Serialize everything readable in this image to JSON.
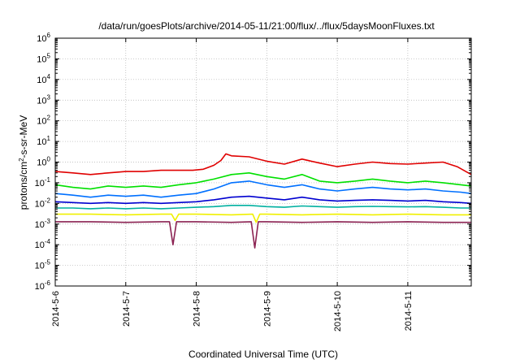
{
  "chart_data": {
    "type": "line",
    "title": "/data/run/goesPlots/archive/2014-05-11/21:00/flux/../flux/5daysMoonFluxes.txt",
    "xlabel": "Coordinated Universal Time (UTC)",
    "ylabel_parts": {
      "prefix": "protons/cm",
      "sup": "2",
      "suffix": "-s-sr-MeV"
    },
    "y_scale": "log",
    "ylim": [
      1e-06,
      1000000.0
    ],
    "x_unit": "days",
    "xlim": [
      0,
      5.9
    ],
    "x_ticks": [
      {
        "value": 0,
        "label": "2014-5-6"
      },
      {
        "value": 1,
        "label": "2014-5-7"
      },
      {
        "value": 2,
        "label": "2014-5-8"
      },
      {
        "value": 3,
        "label": "2014-5-9"
      },
      {
        "value": 4,
        "label": "2014-5-10"
      },
      {
        "value": 5,
        "label": "2014-5-11"
      }
    ],
    "y_ticks": [
      {
        "value": 1e-06,
        "base": "10",
        "exp": "-6"
      },
      {
        "value": 1e-05,
        "base": "10",
        "exp": "-5"
      },
      {
        "value": 0.0001,
        "base": "10",
        "exp": "-4"
      },
      {
        "value": 0.001,
        "base": "10",
        "exp": "-3"
      },
      {
        "value": 0.01,
        "base": "10",
        "exp": "-2"
      },
      {
        "value": 0.1,
        "base": "10",
        "exp": "-1"
      },
      {
        "value": 1.0,
        "base": "10",
        "exp": "0"
      },
      {
        "value": 10.0,
        "base": "10",
        "exp": "1"
      },
      {
        "value": 100.0,
        "base": "10",
        "exp": "2"
      },
      {
        "value": 1000.0,
        "base": "10",
        "exp": "3"
      },
      {
        "value": 10000.0,
        "base": "10",
        "exp": "4"
      },
      {
        "value": 100000.0,
        "base": "10",
        "exp": "5"
      },
      {
        "value": 1000000.0,
        "base": "10",
        "exp": "6"
      }
    ],
    "grid": true,
    "series": [
      {
        "color": "#e00000",
        "x": [
          0,
          0.25,
          0.5,
          0.75,
          1.0,
          1.25,
          1.5,
          1.75,
          1.95,
          2.1,
          2.25,
          2.35,
          2.42,
          2.5,
          2.75,
          3.0,
          3.25,
          3.5,
          3.75,
          4.0,
          4.25,
          4.5,
          4.75,
          5.0,
          5.25,
          5.5,
          5.7,
          5.9
        ],
        "y": [
          0.35,
          0.3,
          0.25,
          0.3,
          0.35,
          0.35,
          0.4,
          0.4,
          0.4,
          0.45,
          0.7,
          1.2,
          2.5,
          2.0,
          1.8,
          1.1,
          0.8,
          1.4,
          0.9,
          0.6,
          0.8,
          1.0,
          0.85,
          0.8,
          0.9,
          1.0,
          0.6,
          0.25
        ]
      },
      {
        "color": "#00e000",
        "x": [
          0,
          0.25,
          0.5,
          0.75,
          1.0,
          1.25,
          1.5,
          1.75,
          2.0,
          2.25,
          2.5,
          2.75,
          3.0,
          3.25,
          3.5,
          3.75,
          4.0,
          4.25,
          4.5,
          4.75,
          5.0,
          5.25,
          5.5,
          5.75,
          5.9
        ],
        "y": [
          0.08,
          0.06,
          0.05,
          0.07,
          0.06,
          0.07,
          0.06,
          0.08,
          0.1,
          0.15,
          0.25,
          0.3,
          0.2,
          0.15,
          0.25,
          0.12,
          0.1,
          0.12,
          0.15,
          0.12,
          0.1,
          0.12,
          0.1,
          0.08,
          0.07
        ]
      },
      {
        "color": "#0070ff",
        "x": [
          0,
          0.25,
          0.5,
          0.75,
          1.0,
          1.25,
          1.5,
          1.75,
          2.0,
          2.25,
          2.5,
          2.75,
          3.0,
          3.25,
          3.5,
          3.75,
          4.0,
          4.25,
          4.5,
          4.75,
          5.0,
          5.25,
          5.5,
          5.75,
          5.9
        ],
        "y": [
          0.03,
          0.025,
          0.02,
          0.025,
          0.022,
          0.025,
          0.02,
          0.025,
          0.03,
          0.05,
          0.1,
          0.12,
          0.08,
          0.06,
          0.08,
          0.05,
          0.04,
          0.05,
          0.06,
          0.05,
          0.045,
          0.05,
          0.04,
          0.035,
          0.03
        ]
      },
      {
        "color": "#0000d0",
        "x": [
          0,
          0.25,
          0.5,
          0.75,
          1.0,
          1.25,
          1.5,
          1.75,
          2.0,
          2.25,
          2.5,
          2.75,
          3.0,
          3.25,
          3.5,
          3.75,
          4.0,
          4.25,
          4.5,
          4.75,
          5.0,
          5.25,
          5.5,
          5.75,
          5.9
        ],
        "y": [
          0.012,
          0.011,
          0.01,
          0.011,
          0.01,
          0.011,
          0.01,
          0.011,
          0.012,
          0.015,
          0.02,
          0.022,
          0.018,
          0.015,
          0.02,
          0.015,
          0.013,
          0.014,
          0.015,
          0.014,
          0.013,
          0.014,
          0.012,
          0.011,
          0.01
        ]
      },
      {
        "color": "#00b0a0",
        "x": [
          0,
          0.25,
          0.5,
          0.75,
          1.0,
          1.25,
          1.5,
          1.75,
          2.0,
          2.25,
          2.5,
          2.75,
          3.0,
          3.25,
          3.5,
          3.75,
          4.0,
          4.25,
          4.5,
          4.75,
          5.0,
          5.25,
          5.5,
          5.75,
          5.9
        ],
        "y": [
          0.006,
          0.006,
          0.0055,
          0.006,
          0.0055,
          0.006,
          0.0055,
          0.006,
          0.0065,
          0.007,
          0.008,
          0.008,
          0.007,
          0.0065,
          0.0075,
          0.007,
          0.0065,
          0.007,
          0.0072,
          0.007,
          0.0068,
          0.007,
          0.0065,
          0.006,
          0.006
        ]
      },
      {
        "color": "#f0f000",
        "x": [
          0,
          0.5,
          1.0,
          1.5,
          1.65,
          1.7,
          1.75,
          2.0,
          2.5,
          2.8,
          2.85,
          2.9,
          3.0,
          3.5,
          4.0,
          4.5,
          5.0,
          5.5,
          5.9
        ],
        "y": [
          0.003,
          0.003,
          0.0028,
          0.003,
          0.003,
          0.0015,
          0.003,
          0.003,
          0.0028,
          0.003,
          0.0012,
          0.003,
          0.003,
          0.0028,
          0.003,
          0.0028,
          0.003,
          0.0028,
          0.0028
        ]
      },
      {
        "color": "#8b2252",
        "x": [
          0,
          0.5,
          1.0,
          1.5,
          1.62,
          1.67,
          1.72,
          2.0,
          2.5,
          2.78,
          2.83,
          2.88,
          3.0,
          3.5,
          4.0,
          4.5,
          5.0,
          5.5,
          5.9
        ],
        "y": [
          0.0013,
          0.0013,
          0.0012,
          0.0013,
          0.0013,
          0.0001,
          0.0013,
          0.0013,
          0.0012,
          0.0013,
          7e-05,
          0.0013,
          0.0013,
          0.0012,
          0.0013,
          0.0012,
          0.0013,
          0.0012,
          0.0012
        ]
      }
    ]
  }
}
